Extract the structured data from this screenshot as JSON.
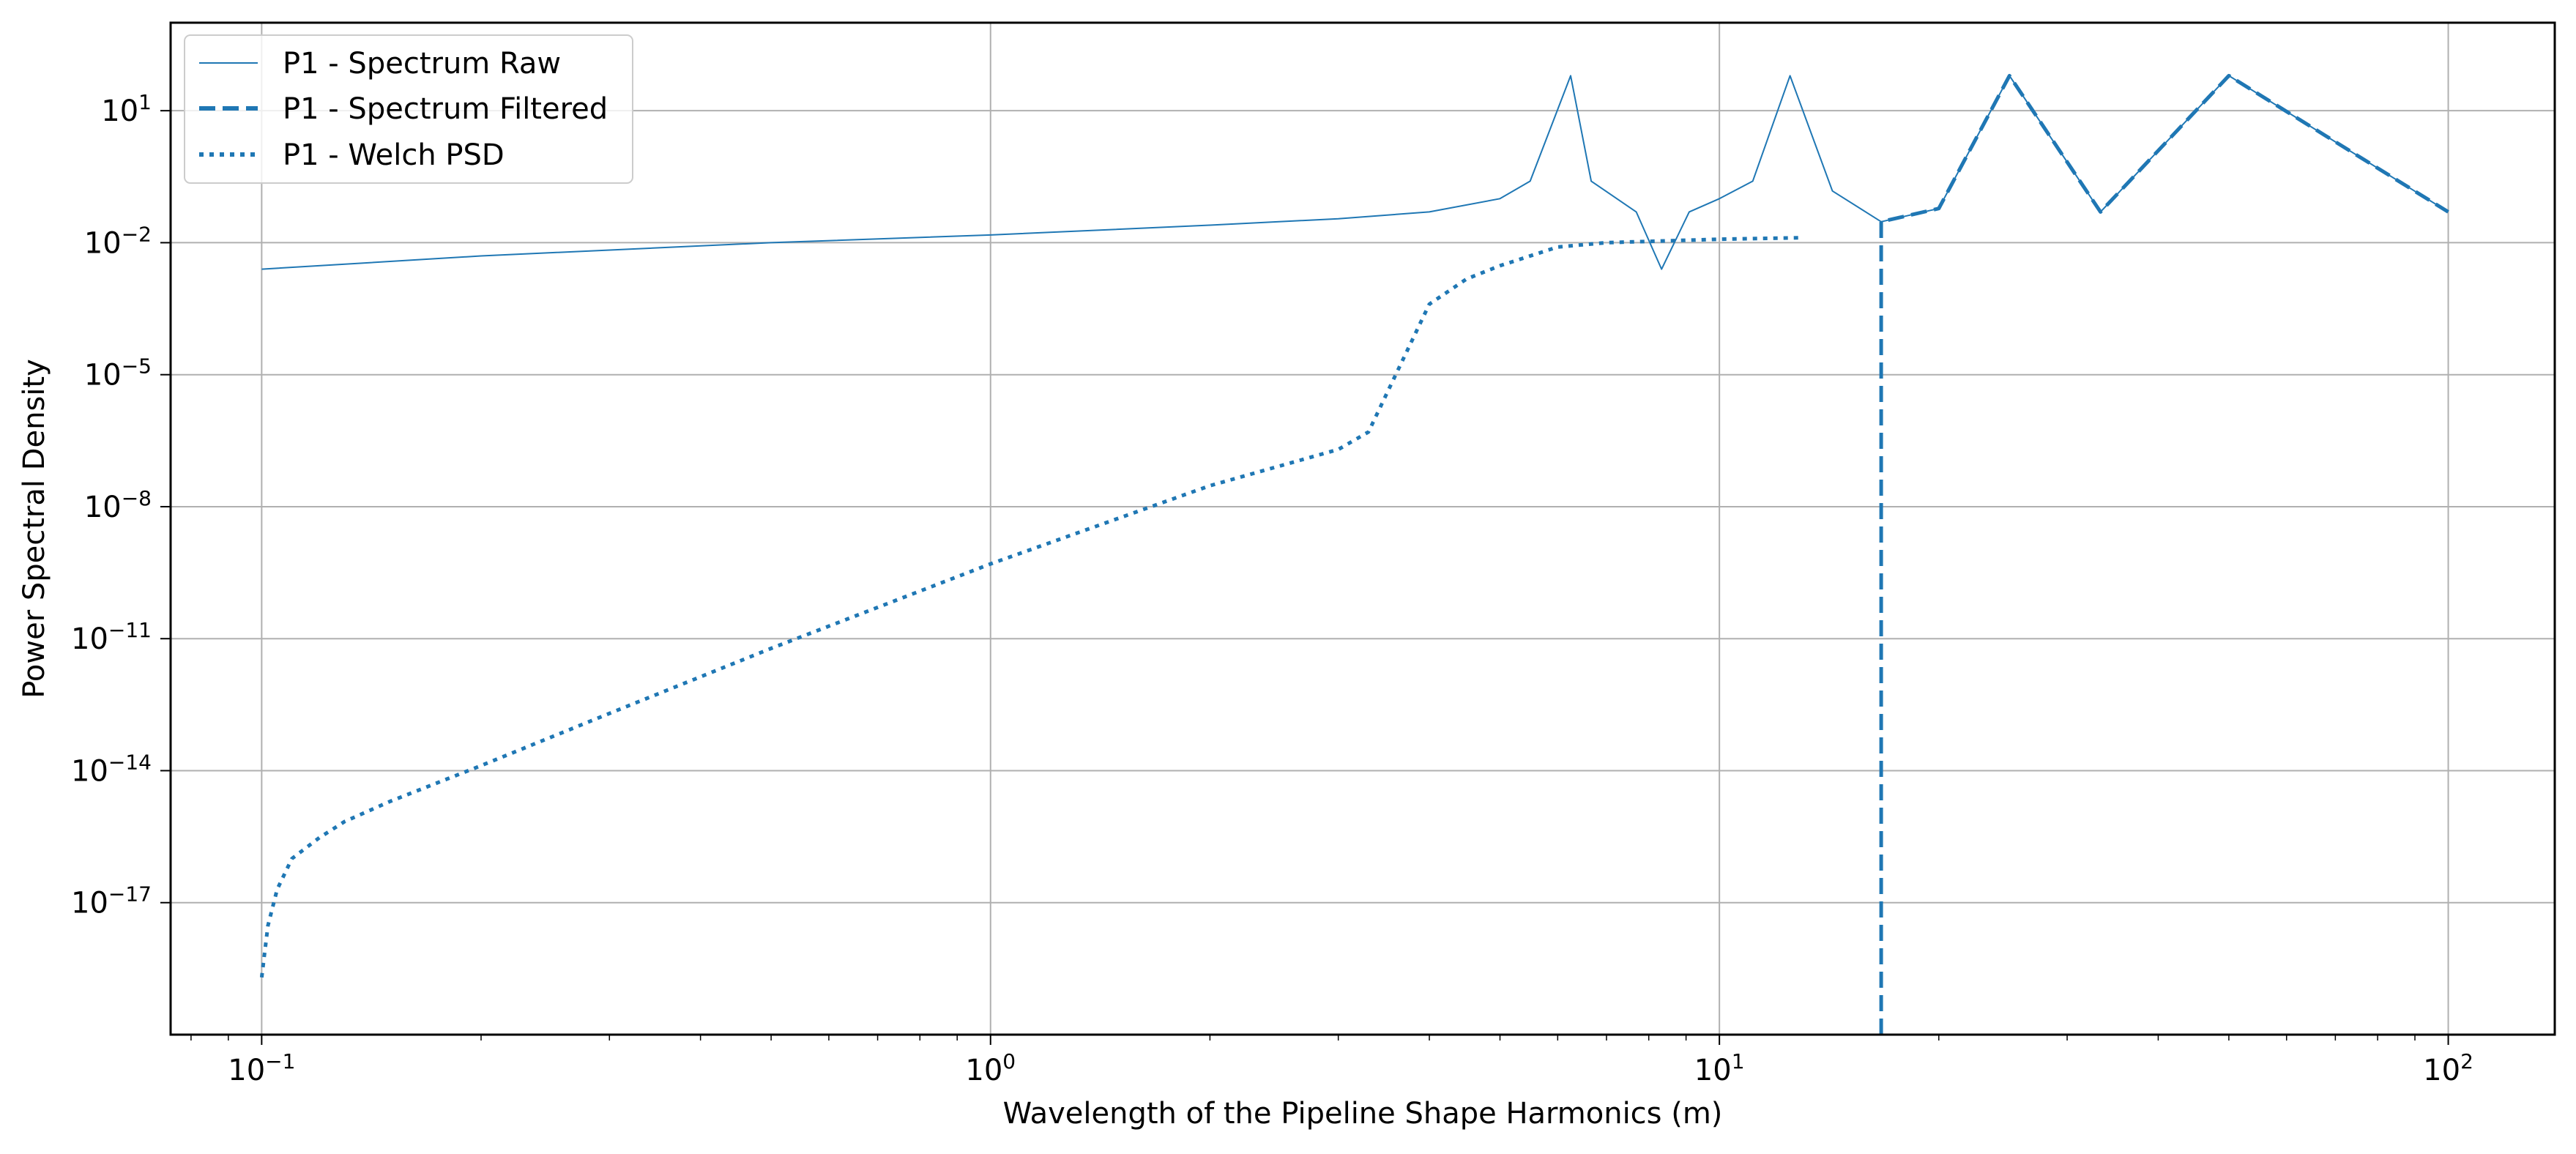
{
  "chart_data": {
    "type": "line",
    "title": "",
    "xlabel": "Wavelength of the Pipeline Shape Harmonics (m)",
    "ylabel": "Power Spectral Density",
    "xscale": "log",
    "yscale": "log",
    "xlim": [
      0.075,
      140
    ],
    "ylim": [
      1e-20,
      1000
    ],
    "grid": true,
    "legend_position": "top-left",
    "x_ticks": [
      {
        "value": 0.1,
        "base": "10",
        "exp": "−1"
      },
      {
        "value": 1,
        "base": "10",
        "exp": "0"
      },
      {
        "value": 10,
        "base": "10",
        "exp": "1"
      },
      {
        "value": 100,
        "base": "10",
        "exp": "2"
      }
    ],
    "y_ticks": [
      {
        "value": 1e-17,
        "base": "10",
        "exp": "−17"
      },
      {
        "value": 1e-14,
        "base": "10",
        "exp": "−14"
      },
      {
        "value": 1e-11,
        "base": "10",
        "exp": "−11"
      },
      {
        "value": 1e-08,
        "base": "10",
        "exp": "−8"
      },
      {
        "value": 1e-05,
        "base": "10",
        "exp": "−5"
      },
      {
        "value": 0.01,
        "base": "10",
        "exp": "−2"
      },
      {
        "value": 10,
        "base": "10",
        "exp": "1"
      }
    ],
    "series": [
      {
        "name": "P1 - Spectrum Raw",
        "color": "#1f77b4",
        "style": "solid",
        "points": [
          [
            0.1,
            0.0025
          ],
          [
            0.2,
            0.005
          ],
          [
            0.5,
            0.01
          ],
          [
            1.0,
            0.015
          ],
          [
            2.0,
            0.025
          ],
          [
            3.0,
            0.035
          ],
          [
            4.0,
            0.05
          ],
          [
            5.0,
            0.1
          ],
          [
            5.5,
            0.25
          ],
          [
            6.25,
            62.5
          ],
          [
            6.67,
            0.25
          ],
          [
            7.69,
            0.05
          ],
          [
            8.33,
            0.0025
          ],
          [
            9.09,
            0.05
          ],
          [
            10.0,
            0.1
          ],
          [
            11.11,
            0.25
          ],
          [
            12.5,
            62.5
          ],
          [
            14.29,
            0.15
          ],
          [
            16.67,
            0.03
          ],
          [
            20.0,
            0.06
          ],
          [
            25.0,
            62.5
          ],
          [
            33.33,
            0.05
          ],
          [
            50.0,
            62.5
          ],
          [
            100.0,
            0.05
          ]
        ]
      },
      {
        "name": "P1 - Spectrum Filtered",
        "color": "#1f77b4",
        "style": "dashed",
        "points": [
          [
            16.67,
            1e-21
          ],
          [
            16.67,
            0.03
          ],
          [
            20.0,
            0.06
          ],
          [
            25.0,
            62.5
          ],
          [
            33.33,
            0.05
          ],
          [
            50.0,
            62.5
          ],
          [
            100.0,
            0.05
          ]
        ]
      },
      {
        "name": "P1 - Welch PSD",
        "color": "#1f77b4",
        "style": "dotted",
        "points": [
          [
            0.1,
            2e-19
          ],
          [
            0.102,
            3e-18
          ],
          [
            0.105,
            2e-17
          ],
          [
            0.11,
            1e-16
          ],
          [
            0.12,
            3e-16
          ],
          [
            0.13,
            7e-16
          ],
          [
            0.15,
            2e-15
          ],
          [
            0.2,
            1.3e-14
          ],
          [
            0.3,
            2e-13
          ],
          [
            0.5,
            6e-12
          ],
          [
            1.0,
            5e-10
          ],
          [
            2.0,
            3e-08
          ],
          [
            3.0,
            2e-07
          ],
          [
            3.3,
            5e-07
          ],
          [
            4.0,
            0.0004
          ],
          [
            4.5,
            0.0015
          ],
          [
            5.0,
            0.003
          ],
          [
            6.0,
            0.008
          ],
          [
            7.0,
            0.01
          ],
          [
            10.0,
            0.012
          ],
          [
            13.0,
            0.013
          ]
        ]
      }
    ]
  }
}
